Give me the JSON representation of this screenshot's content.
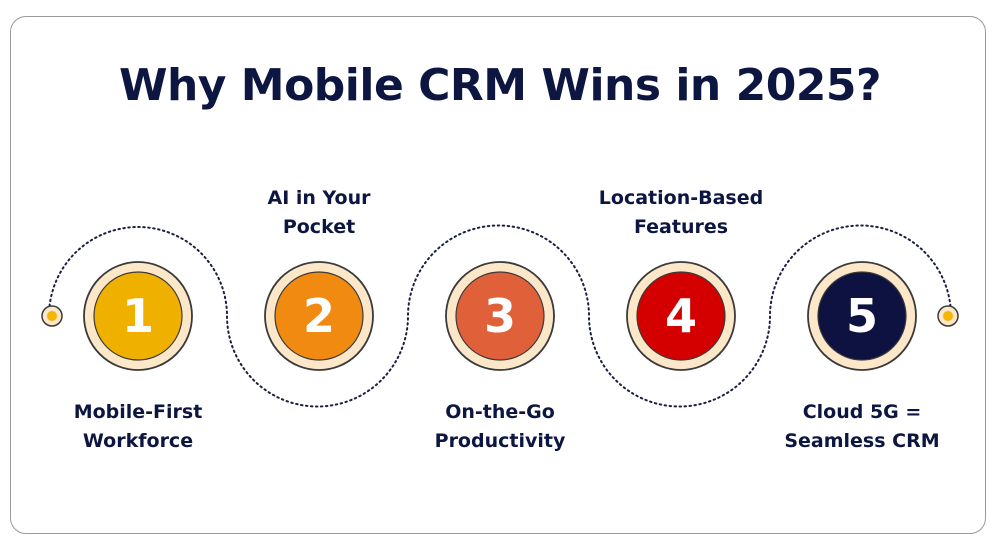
{
  "title": "Why Mobile CRM Wins in 2025?",
  "colors": {
    "title_text": "#0d1640",
    "path_dots": "#1b2040",
    "ring_fill": "#fde7c9",
    "ring_stroke": "#3a3a3a",
    "endpoint_fill": "#f5b400"
  },
  "steps": [
    {
      "number": "1",
      "label": "Mobile-First\nWorkforce",
      "color": "#f0b000",
      "label_position": "below"
    },
    {
      "number": "2",
      "label": "AI in Your\nPocket",
      "color": "#f08a10",
      "label_position": "above"
    },
    {
      "number": "3",
      "label": "On-the-Go\nProductivity",
      "color": "#e0603a",
      "label_position": "below"
    },
    {
      "number": "4",
      "label": "Location-Based\nFeatures",
      "color": "#d40000",
      "label_position": "above"
    },
    {
      "number": "5",
      "label": "Cloud 5G =\nSeamless CRM",
      "color": "#0d1240",
      "label_position": "below"
    }
  ]
}
